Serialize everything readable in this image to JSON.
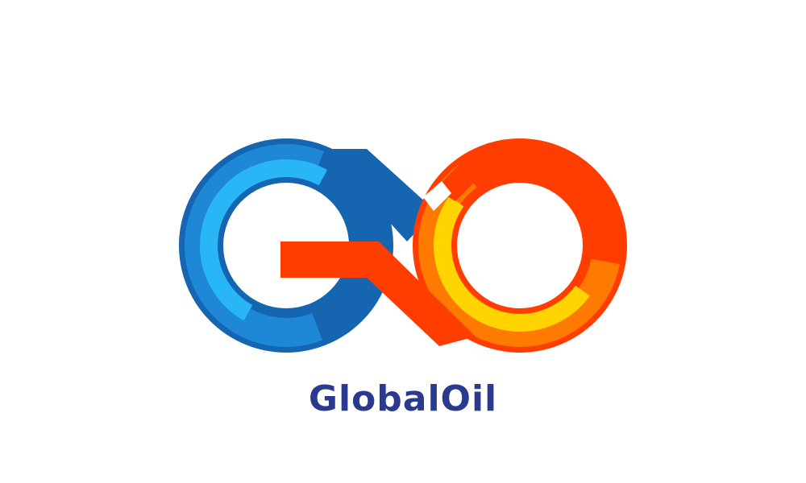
{
  "brand": {
    "name": "GlobalOil",
    "name_color": "#2a3a8f"
  },
  "logo": {
    "icon": "infinity-g-logo-icon",
    "colors": {
      "blue_dark": "#1565b0",
      "blue_mid": "#1e88d6",
      "blue_light": "#29b6f6",
      "red": "#ff3d00",
      "orange": "#ff7a00",
      "yellow": "#ffd400"
    }
  }
}
